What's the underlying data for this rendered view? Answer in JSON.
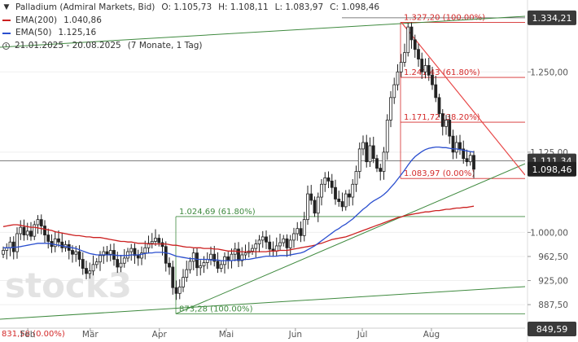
{
  "legend": {
    "instrument": "Palladium (Admiral Markets, Bid)",
    "open": "O: 1.105,73",
    "high": "H: 1.108,11",
    "low": "L: 1.083,97",
    "close": "C: 1.098,46",
    "ema200_label": "EMA(200)",
    "ema200_value": "1.040,86",
    "ema50_label": "EMA(50)",
    "ema50_value": "1.125,16",
    "range": "21.01.2025 - 20.08.2025",
    "range_detail": "(7 Monate, 1 Tag)"
  },
  "colors": {
    "candle": "#222222",
    "ema200": "#cc2020",
    "ema50": "#2b4fcf",
    "trendline": "#3f8a3f",
    "fib_red": "#d42a2a",
    "fib_green": "#3f8a3f",
    "downtrend": "#e84848",
    "price_label_bg": "#3a3a3a",
    "axis_text": "#555555"
  },
  "chart_data": {
    "type": "candlestick",
    "ylim": [
      849.59,
      1362
    ],
    "y_ticks": [
      {
        "value": 887.5,
        "label": "887,50"
      },
      {
        "value": 925.0,
        "label": "925,00"
      },
      {
        "value": 962.5,
        "label": "962,50"
      },
      {
        "value": 1000.0,
        "label": "1.000,00"
      },
      {
        "value": 1125.0,
        "label": "1.125,00"
      },
      {
        "value": 1250.0,
        "label": "1.250,00"
      }
    ],
    "price_labels": [
      {
        "value": 1334.21,
        "label": "1.334,21"
      },
      {
        "value": 1111.34,
        "label": "1.111,34"
      },
      {
        "value": 1098.46,
        "label": "1.098,46"
      },
      {
        "value": 849.59,
        "label": "849,59"
      }
    ],
    "x_ticks": [
      {
        "date": "2025-02-01",
        "label": "Feb"
      },
      {
        "date": "2025-03-01",
        "label": "Mär"
      },
      {
        "date": "2025-04-01",
        "label": "Apr"
      },
      {
        "date": "2025-05-01",
        "label": "Mai"
      },
      {
        "date": "2025-06-01",
        "label": "Jun"
      },
      {
        "date": "2025-07-01",
        "label": "Jul"
      },
      {
        "date": "2025-08-01",
        "label": "Aug"
      }
    ],
    "closes": [
      972,
      976,
      985,
      970,
      998,
      1008,
      996,
      1002,
      994,
      1012,
      1020,
      1010,
      996,
      986,
      978,
      990,
      985,
      976,
      981,
      972,
      966,
      970,
      958,
      944,
      936,
      940,
      950,
      954,
      964,
      970,
      966,
      972,
      958,
      946,
      952,
      960,
      970,
      975,
      964,
      960,
      968,
      976,
      983,
      986,
      991,
      984,
      978,
      952,
      946,
      914,
      905,
      915,
      930,
      942,
      955,
      968,
      945,
      948,
      953,
      958,
      966,
      955,
      944,
      950,
      962,
      956,
      966,
      974,
      956,
      965,
      968,
      971,
      975,
      982,
      988,
      993,
      985,
      974,
      971,
      979,
      984,
      990,
      976,
      988,
      998,
      1006,
      995,
      1020,
      1060,
      1050,
      1030,
      1055,
      1075,
      1085,
      1080,
      1070,
      1052,
      1048,
      1040,
      1060,
      1055,
      1075,
      1095,
      1130,
      1140,
      1110,
      1135,
      1115,
      1100,
      1095,
      1125,
      1175,
      1210,
      1230,
      1250,
      1265,
      1280,
      1320,
      1300,
      1285,
      1270,
      1250,
      1260,
      1245,
      1230,
      1210,
      1185,
      1165,
      1175,
      1150,
      1125,
      1140,
      1130,
      1115,
      1110,
      1120,
      1098.46
    ],
    "ema200": [
      1009,
      1010,
      1011,
      1012,
      1012,
      1011,
      1010,
      1009,
      1008,
      1008,
      1007,
      1006,
      1005,
      1004,
      1003,
      1001,
      1000,
      999,
      998,
      997,
      996,
      995,
      995,
      994,
      993,
      993,
      992,
      992,
      992,
      991,
      990,
      989,
      988,
      987,
      986,
      986,
      985,
      985,
      984,
      983,
      983,
      983,
      982,
      982,
      982,
      982,
      982,
      982,
      981,
      980,
      980,
      979,
      978,
      977,
      977,
      976,
      976,
      976,
      975,
      975,
      975,
      974,
      974,
      973,
      972,
      971,
      971,
      971,
      970,
      970,
      970,
      970,
      970,
      970,
      970,
      970,
      970,
      971,
      971,
      971,
      972,
      972,
      972,
      973,
      974,
      975,
      976,
      977,
      978,
      979,
      980,
      982,
      983,
      985,
      987,
      989,
      990,
      991,
      992,
      993,
      995,
      997,
      999,
      1001,
      1003,
      1005,
      1007,
      1009,
      1011,
      1013,
      1015,
      1017,
      1019,
      1021,
      1023,
      1024,
      1026,
      1027,
      1028,
      1029,
      1030,
      1031,
      1032,
      1032,
      1033,
      1034,
      1034,
      1035,
      1036,
      1036,
      1037,
      1038,
      1038,
      1039,
      1039,
      1040,
      1040.86
    ],
    "ema50": [
      976,
      976,
      976,
      977,
      977,
      978,
      979,
      980,
      981,
      982,
      983,
      983,
      983,
      983,
      982,
      981,
      980,
      979,
      978,
      977,
      976,
      975,
      973,
      971,
      969,
      967,
      966,
      965,
      965,
      965,
      965,
      965,
      965,
      964,
      964,
      964,
      964,
      965,
      965,
      965,
      966,
      967,
      968,
      968,
      969,
      969,
      969,
      968,
      967,
      965,
      963,
      962,
      961,
      960,
      959,
      959,
      958,
      958,
      958,
      958,
      957,
      957,
      957,
      956,
      956,
      956,
      956,
      957,
      957,
      957,
      958,
      958,
      959,
      960,
      961,
      962,
      963,
      963,
      963,
      963,
      964,
      964,
      964,
      965,
      966,
      967,
      968,
      970,
      973,
      976,
      979,
      983,
      987,
      991,
      995,
      999,
      1003,
      1006,
      1010,
      1013,
      1017,
      1021,
      1026,
      1031,
      1036,
      1040,
      1045,
      1049,
      1052,
      1055,
      1059,
      1064,
      1070,
      1076,
      1083,
      1090,
      1097,
      1105,
      1112,
      1118,
      1122,
      1126,
      1129,
      1131,
      1132,
      1133,
      1133,
      1132,
      1132,
      1131,
      1130,
      1130,
      1129,
      1128,
      1127,
      1126,
      1125.16
    ],
    "fibonacci": [
      {
        "value": 1327.2,
        "label": "1.327,20 (100.00%)",
        "group": "red"
      },
      {
        "value": 1241.43,
        "label": "1.241,43 (61.80%)",
        "group": "red"
      },
      {
        "value": 1171.72,
        "label": "1.171,72 (38.20%)",
        "group": "red"
      },
      {
        "value": 1083.97,
        "label": "1.083,97 (0.00%)",
        "group": "red"
      },
      {
        "value": 1024.69,
        "label": "1.024,69 (61.80%)",
        "group": "green"
      },
      {
        "value": 873.28,
        "label": "873,28 (100.00%)",
        "group": "green"
      }
    ],
    "left_cut_label": "831,58 (0.00%)",
    "watermark": "stock3"
  }
}
